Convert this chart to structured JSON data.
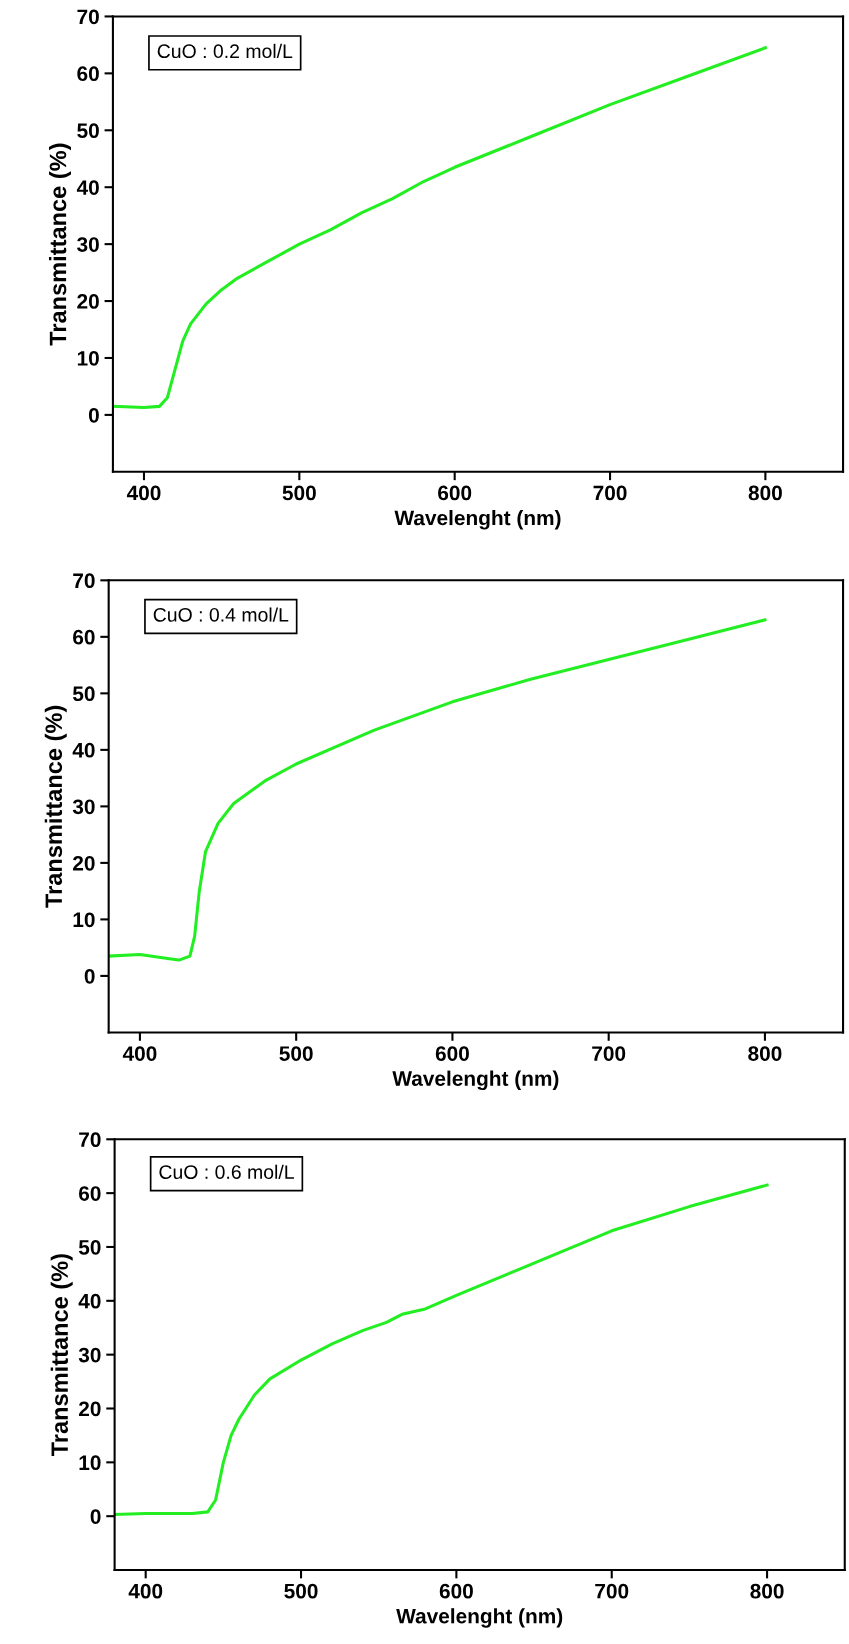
{
  "chart_data": [
    {
      "type": "line",
      "xlabel": "Wavelenght (nm)",
      "ylabel": "Transmittance (%)",
      "annotations": [
        "CuO : 0.2 mol/L"
      ],
      "xlim": [
        380,
        850
      ],
      "ylim": [
        -10,
        70
      ],
      "xticks": [
        400,
        500,
        600,
        700,
        800
      ],
      "yticks": [
        0,
        10,
        20,
        30,
        40,
        50,
        60,
        70
      ],
      "grid": false,
      "legend": false,
      "series": [
        {
          "color": "#22ee22",
          "x": [
            380,
            400,
            410,
            415,
            420,
            425,
            430,
            440,
            450,
            460,
            480,
            500,
            520,
            540,
            560,
            580,
            600,
            650,
            700,
            750,
            800
          ],
          "values": [
            1.5,
            1.3,
            1.5,
            3,
            8,
            13,
            16,
            19.5,
            22,
            24,
            27,
            30,
            32.5,
            35.5,
            38,
            41,
            43.5,
            49,
            54.5,
            59.5,
            64.5
          ]
        }
      ]
    },
    {
      "type": "line",
      "xlabel": "Wavelenght (nm)",
      "ylabel": "Transmittance (%)",
      "annotations": [
        "CuO : 0.4 mol/L"
      ],
      "xlim": [
        380,
        850
      ],
      "ylim": [
        -10,
        70
      ],
      "xticks": [
        400,
        500,
        600,
        700,
        800
      ],
      "yticks": [
        0,
        10,
        20,
        30,
        40,
        50,
        60,
        70
      ],
      "grid": false,
      "legend": false,
      "series": [
        {
          "color": "#22ee22",
          "x": [
            380,
            400,
            420,
            425,
            432,
            435,
            438,
            442,
            450,
            460,
            480,
            500,
            550,
            600,
            650,
            700,
            750,
            800
          ],
          "values": [
            3.5,
            3.8,
            3,
            2.8,
            3.5,
            7,
            15,
            22,
            27,
            30.5,
            34.5,
            37.5,
            43.5,
            48.5,
            52.5,
            56,
            59.5,
            63
          ]
        }
      ]
    },
    {
      "type": "line",
      "xlabel": "Wavelenght (nm)",
      "ylabel": "Transmittance (%)",
      "annotations": [
        "CuO : 0.6 mol/L"
      ],
      "xlim": [
        380,
        850
      ],
      "ylim": [
        -10,
        70
      ],
      "xticks": [
        400,
        500,
        600,
        700,
        800
      ],
      "yticks": [
        0,
        10,
        20,
        30,
        40,
        50,
        60,
        70
      ],
      "grid": false,
      "legend": false,
      "series": [
        {
          "color": "#22ee22",
          "x": [
            380,
            400,
            430,
            440,
            445,
            450,
            455,
            460,
            470,
            480,
            500,
            520,
            540,
            555,
            565,
            580,
            600,
            650,
            700,
            750,
            800
          ],
          "values": [
            0.3,
            0.5,
            0.5,
            0.8,
            3,
            10,
            15,
            18,
            22.5,
            25.5,
            29,
            32,
            34.5,
            36,
            37.5,
            38.5,
            41,
            47,
            53,
            57.5,
            61.5
          ]
        }
      ]
    }
  ]
}
